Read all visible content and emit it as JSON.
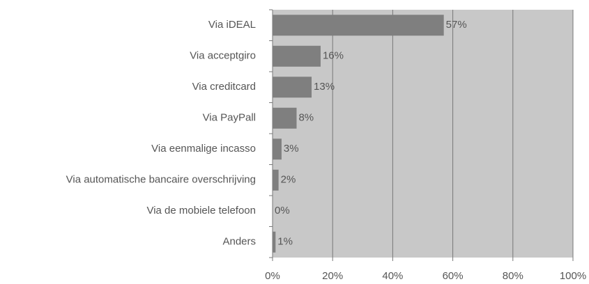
{
  "chart_data": {
    "type": "barh",
    "categories": [
      "Via iDEAL",
      "Via acceptgiro",
      "Via creditcard",
      "Via PayPall",
      "Via eenmalige incasso",
      "Via automatische bancaire overschrijving",
      "Via de mobiele telefoon",
      "Anders"
    ],
    "values": [
      57,
      16,
      13,
      8,
      3,
      2,
      0,
      1
    ],
    "value_labels": [
      "57%",
      "16%",
      "13%",
      "8%",
      "3%",
      "2%",
      "0%",
      "1%"
    ],
    "color": "#7f7f7f",
    "xlim": [
      0,
      100
    ],
    "xticks": [
      {
        "value": 0,
        "label": "0%"
      },
      {
        "value": 20,
        "label": "20%"
      },
      {
        "value": 40,
        "label": "40%"
      },
      {
        "value": 60,
        "label": "60%"
      },
      {
        "value": 80,
        "label": "80%"
      },
      {
        "value": 100,
        "label": "100%"
      }
    ],
    "grid": true
  }
}
